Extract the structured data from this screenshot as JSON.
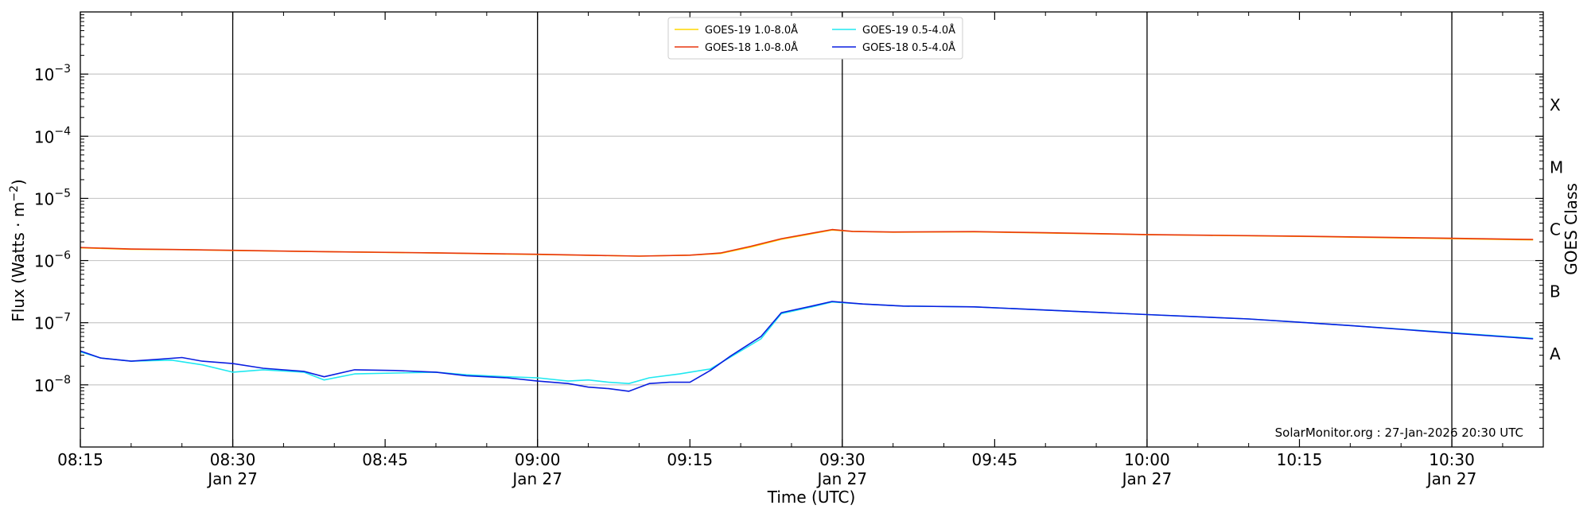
{
  "chart_data": {
    "type": "line",
    "xlabel": "Time (UTC)",
    "ylabel_prefix": "Flux (Watts · m",
    "ylabel_sup": "−2",
    "ylabel_suffix": ")",
    "right_axis_label": "GOES Class",
    "y_scale": "log",
    "ylim": [
      1e-09,
      0.01
    ],
    "xlim": [
      "08:15",
      "10:39"
    ],
    "x_ticks": [
      {
        "time": "08:15",
        "label": "08:15",
        "sublabel": ""
      },
      {
        "time": "08:30",
        "label": "08:30",
        "sublabel": "Jan 27"
      },
      {
        "time": "08:45",
        "label": "08:45",
        "sublabel": ""
      },
      {
        "time": "09:00",
        "label": "09:00",
        "sublabel": "Jan 27"
      },
      {
        "time": "09:15",
        "label": "09:15",
        "sublabel": ""
      },
      {
        "time": "09:30",
        "label": "09:30",
        "sublabel": "Jan 27"
      },
      {
        "time": "09:45",
        "label": "09:45",
        "sublabel": ""
      },
      {
        "time": "10:00",
        "label": "10:00",
        "sublabel": "Jan 27"
      },
      {
        "time": "10:15",
        "label": "10:15",
        "sublabel": ""
      },
      {
        "time": "10:30",
        "label": "10:30",
        "sublabel": "Jan 27"
      }
    ],
    "y_ticks": [
      {
        "value": 1e-08,
        "base": "10",
        "exp": "−8"
      },
      {
        "value": 1e-07,
        "base": "10",
        "exp": "−7"
      },
      {
        "value": 1e-06,
        "base": "10",
        "exp": "−6"
      },
      {
        "value": 1e-05,
        "base": "10",
        "exp": "−5"
      },
      {
        "value": 0.0001,
        "base": "10",
        "exp": "−4"
      },
      {
        "value": 0.001,
        "base": "10",
        "exp": "−3"
      }
    ],
    "vertical_lines": [
      "08:30",
      "09:00",
      "09:30",
      "10:00",
      "10:30"
    ],
    "goes_classes": [
      {
        "label": "A",
        "value": 3.16e-08
      },
      {
        "label": "B",
        "value": 3.16e-07
      },
      {
        "label": "C",
        "value": 3.16e-06
      },
      {
        "label": "M",
        "value": 3.16e-05
      },
      {
        "label": "X",
        "value": 0.000316
      }
    ],
    "grid": true,
    "legend_position": "top-center",
    "series": [
      {
        "name": "GOES-19 1.0-8.0Å",
        "color": "#ffd700",
        "x": [
          "08:15",
          "08:20",
          "08:25",
          "08:30",
          "08:40",
          "08:50",
          "09:00",
          "09:10",
          "09:15",
          "09:18",
          "09:21",
          "09:24",
          "09:27",
          "09:29",
          "09:31",
          "09:35",
          "09:43",
          "09:50",
          "10:00",
          "10:15",
          "10:30",
          "10:38"
        ],
        "y": [
          1.6e-06,
          1.52e-06,
          1.5e-06,
          1.45e-06,
          1.38e-06,
          1.32e-06,
          1.25e-06,
          1.18e-06,
          1.22e-06,
          1.3e-06,
          1.65e-06,
          2.2e-06,
          2.7e-06,
          3.1e-06,
          2.95e-06,
          2.85e-06,
          2.9e-06,
          2.78e-06,
          2.6e-06,
          2.45e-06,
          2.25e-06,
          2.15e-06
        ]
      },
      {
        "name": "GOES-18 1.0-8.0Å",
        "color": "#e8360f",
        "x": [
          "08:15",
          "08:20",
          "08:25",
          "08:30",
          "08:40",
          "08:50",
          "09:00",
          "09:10",
          "09:15",
          "09:18",
          "09:21",
          "09:24",
          "09:27",
          "09:29",
          "09:31",
          "09:35",
          "09:43",
          "09:50",
          "10:00",
          "10:15",
          "10:30",
          "10:38"
        ],
        "y": [
          1.62e-06,
          1.53e-06,
          1.5e-06,
          1.46e-06,
          1.38e-06,
          1.33e-06,
          1.26e-06,
          1.18e-06,
          1.22e-06,
          1.32e-06,
          1.7e-06,
          2.25e-06,
          2.75e-06,
          3.15e-06,
          2.95e-06,
          2.88e-06,
          2.92e-06,
          2.8e-06,
          2.62e-06,
          2.47e-06,
          2.28e-06,
          2.18e-06
        ]
      },
      {
        "name": "GOES-19 0.5-4.0Å",
        "color": "#20e8f0",
        "x": [
          "08:15",
          "08:17",
          "08:20",
          "08:24",
          "08:27",
          "08:30",
          "08:33",
          "08:37",
          "08:39",
          "08:42",
          "08:46",
          "08:50",
          "08:53",
          "08:57",
          "09:00",
          "09:03",
          "09:05",
          "09:07",
          "09:09",
          "09:11",
          "09:14",
          "09:17",
          "09:19",
          "09:22",
          "09:24",
          "09:27",
          "09:29",
          "09:32",
          "09:36",
          "09:43",
          "09:50",
          "10:00",
          "10:10",
          "10:20",
          "10:30",
          "10:38"
        ],
        "y": [
          3.4e-08,
          2.7e-08,
          2.4e-08,
          2.5e-08,
          2.1e-08,
          1.6e-08,
          1.75e-08,
          1.6e-08,
          1.2e-08,
          1.5e-08,
          1.55e-08,
          1.6e-08,
          1.45e-08,
          1.35e-08,
          1.3e-08,
          1.15e-08,
          1.2e-08,
          1.1e-08,
          1.05e-08,
          1.3e-08,
          1.5e-08,
          1.8e-08,
          2.8e-08,
          5.5e-08,
          1.4e-07,
          1.8e-07,
          2.15e-07,
          2e-07,
          1.85e-07,
          1.8e-07,
          1.6e-07,
          1.35e-07,
          1.15e-07,
          9e-08,
          6.9e-08,
          5.6e-08
        ]
      },
      {
        "name": "GOES-18 0.5-4.0Å",
        "color": "#0a1ee0",
        "x": [
          "08:15",
          "08:17",
          "08:20",
          "08:23",
          "08:25",
          "08:27",
          "08:30",
          "08:33",
          "08:37",
          "08:39",
          "08:42",
          "08:46",
          "08:50",
          "08:53",
          "08:57",
          "09:00",
          "09:03",
          "09:05",
          "09:07",
          "09:09",
          "09:11",
          "09:13",
          "09:15",
          "09:17",
          "09:19",
          "09:22",
          "09:24",
          "09:27",
          "09:29",
          "09:32",
          "09:36",
          "09:43",
          "09:50",
          "10:00",
          "10:10",
          "10:20",
          "10:30",
          "10:38"
        ],
        "y": [
          3.5e-08,
          2.7e-08,
          2.4e-08,
          2.6e-08,
          2.75e-08,
          2.4e-08,
          2.2e-08,
          1.85e-08,
          1.65e-08,
          1.35e-08,
          1.75e-08,
          1.7e-08,
          1.6e-08,
          1.4e-08,
          1.3e-08,
          1.15e-08,
          1.05e-08,
          9.2e-09,
          8.7e-09,
          7.9e-09,
          1.05e-08,
          1.1e-08,
          1.1e-08,
          1.7e-08,
          2.9e-08,
          6e-08,
          1.45e-07,
          1.85e-07,
          2.2e-07,
          2e-07,
          1.85e-07,
          1.8e-07,
          1.6e-07,
          1.35e-07,
          1.15e-07,
          9e-08,
          6.8e-08,
          5.5e-08
        ]
      }
    ],
    "annotation": "SolarMonitor.org : 27-Jan-2026 20:30 UTC"
  }
}
